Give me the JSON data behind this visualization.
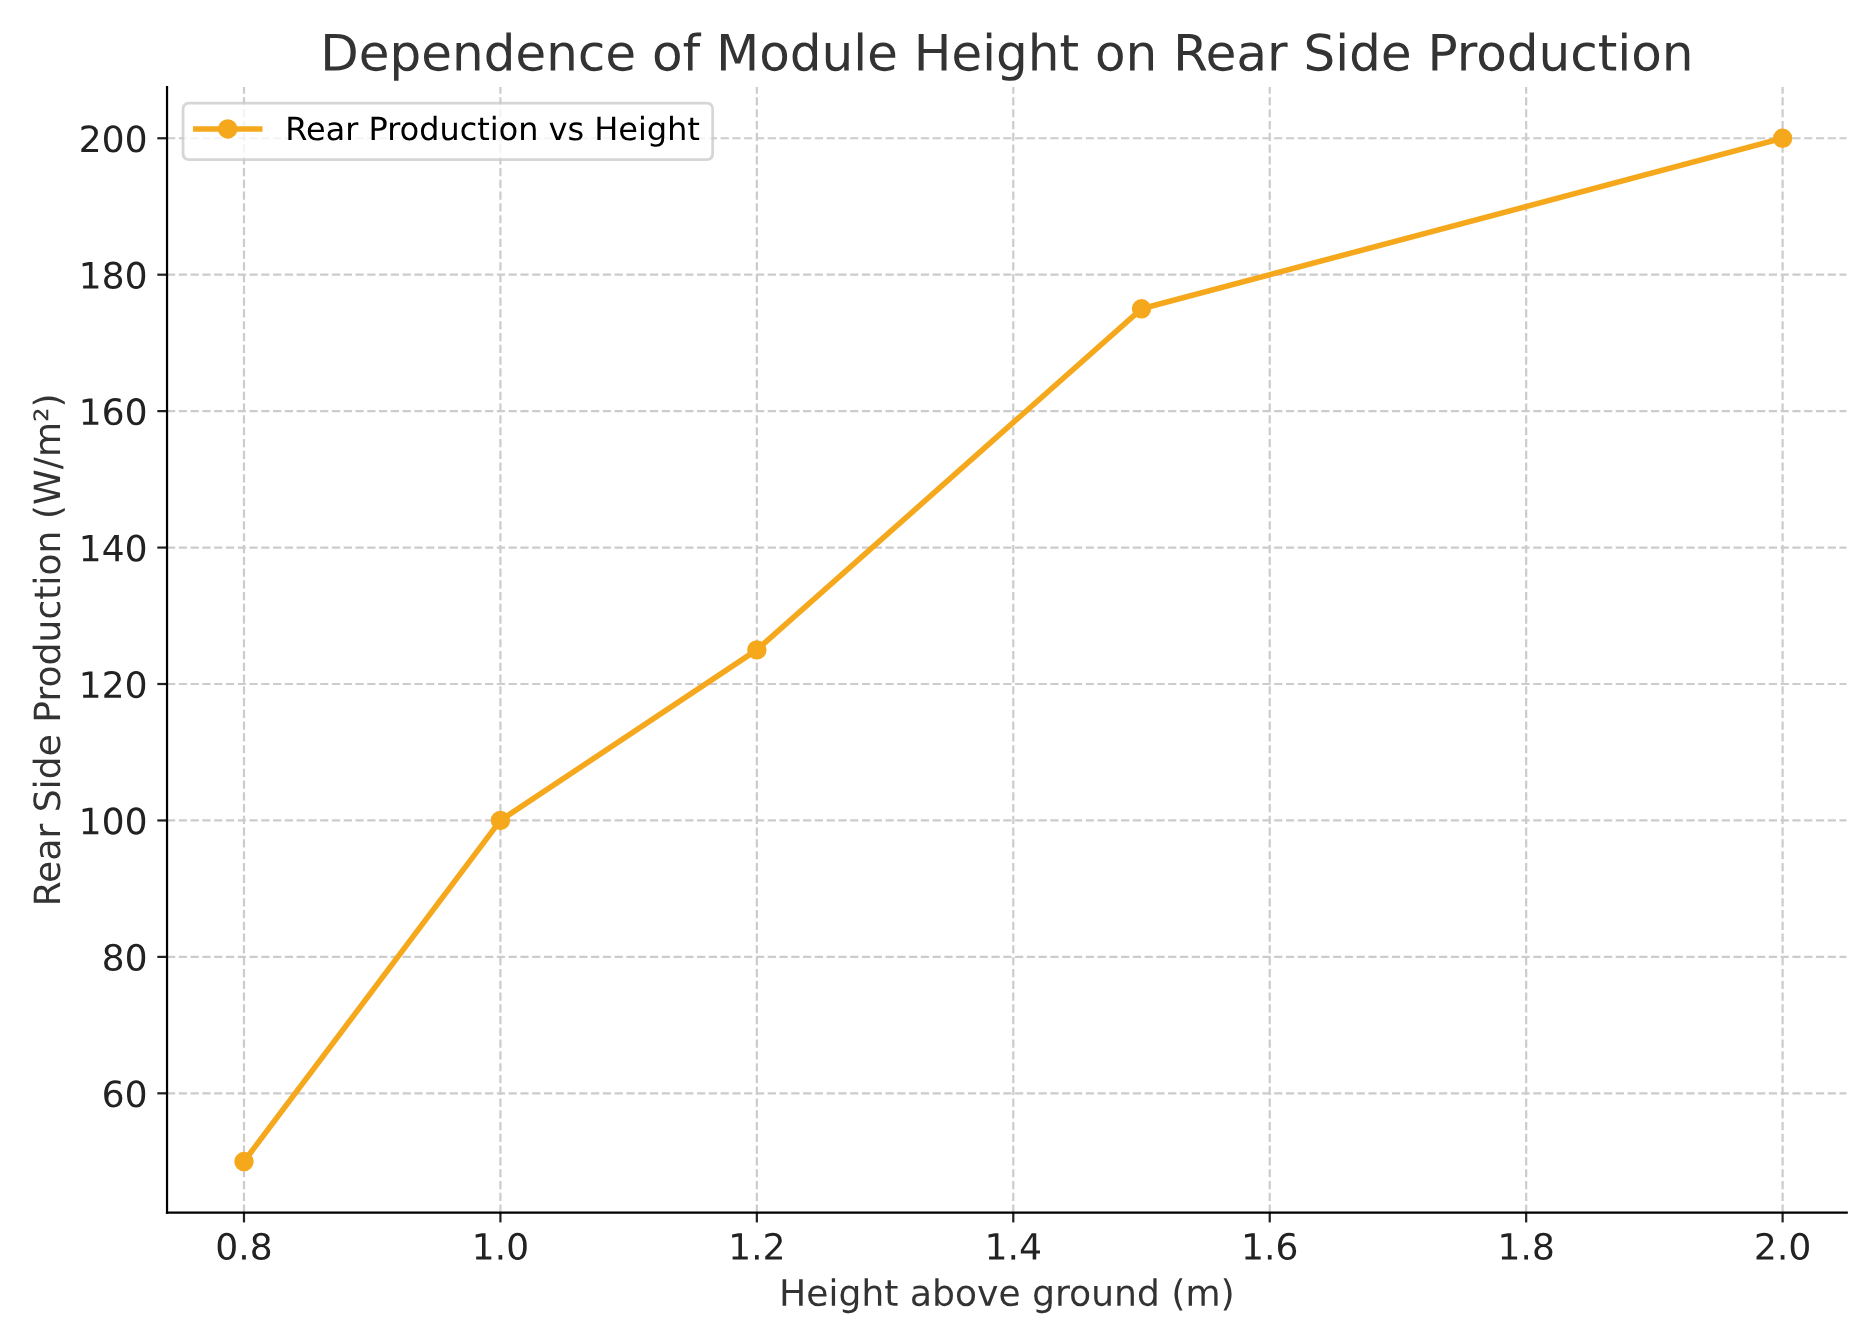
{
  "chart_data": {
    "type": "line",
    "title": "Dependence of Module Height on Rear Side Production",
    "xlabel": "Height above ground (m)",
    "ylabel": "Rear Side Production (W/m²)",
    "x": [
      0.8,
      1.0,
      1.2,
      1.5,
      2.0
    ],
    "series": [
      {
        "name": "Rear Production vs Height",
        "color": "#f5a81c",
        "values": [
          50,
          100,
          125,
          175,
          200
        ]
      }
    ],
    "xlim": [
      0.74,
      2.05
    ],
    "ylim": [
      42.5,
      207.5
    ],
    "xticks": [
      {
        "value": 0.8,
        "label": "0.8"
      },
      {
        "value": 1.0,
        "label": "1.0"
      },
      {
        "value": 1.2,
        "label": "1.2"
      },
      {
        "value": 1.4,
        "label": "1.4"
      },
      {
        "value": 1.6,
        "label": "1.6"
      },
      {
        "value": 1.8,
        "label": "1.8"
      },
      {
        "value": 2.0,
        "label": "2.0"
      }
    ],
    "yticks": [
      60,
      80,
      100,
      120,
      140,
      160,
      180,
      200
    ],
    "grid": true,
    "legend": "top left",
    "marker": "circle",
    "line_style": "solid"
  }
}
